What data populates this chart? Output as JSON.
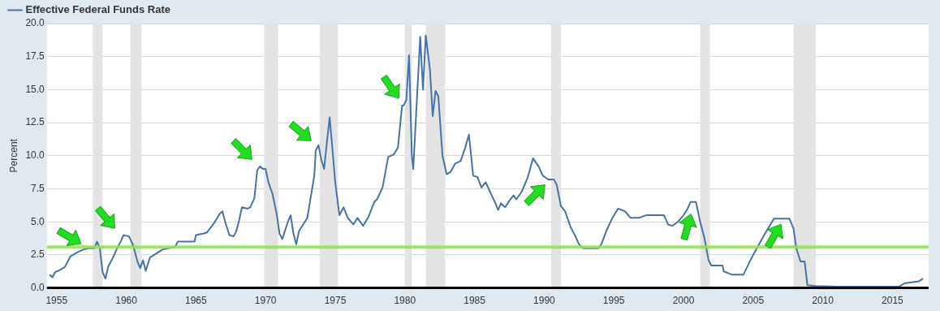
{
  "chart_data": {
    "type": "line",
    "ylabel": "Percent",
    "x": [
      1954.5,
      1954.7,
      1954.9,
      1955.3,
      1955.6,
      1956.0,
      1956.5,
      1956.9,
      1957.3,
      1957.7,
      1957.9,
      1958.1,
      1958.3,
      1958.5,
      1958.7,
      1959.0,
      1959.3,
      1959.6,
      1959.8,
      1960.2,
      1960.5,
      1960.8,
      1961.0,
      1961.2,
      1961.4,
      1961.7,
      1962.0,
      1962.3,
      1962.6,
      1963.0,
      1963.5,
      1963.7,
      1964.0,
      1964.5,
      1964.9,
      1965.0,
      1965.5,
      1965.8,
      1966.3,
      1966.7,
      1966.9,
      1967.1,
      1967.4,
      1967.7,
      1967.9,
      1968.1,
      1968.3,
      1968.7,
      1968.9,
      1969.2,
      1969.4,
      1969.6,
      1969.8,
      1970.0,
      1970.2,
      1970.5,
      1970.8,
      1971.0,
      1971.2,
      1971.6,
      1971.8,
      1972.0,
      1972.2,
      1972.4,
      1972.7,
      1973.0,
      1973.2,
      1973.5,
      1973.6,
      1973.8,
      1974.0,
      1974.2,
      1974.4,
      1974.6,
      1974.8,
      1975.0,
      1975.3,
      1975.6,
      1975.9,
      1976.3,
      1976.6,
      1977.0,
      1977.4,
      1977.8,
      1978.0,
      1978.4,
      1978.8,
      1979.2,
      1979.5,
      1979.8,
      1979.9,
      1980.1,
      1980.3,
      1980.5,
      1980.6,
      1980.9,
      1981.1,
      1981.3,
      1981.5,
      1981.8,
      1982.0,
      1982.2,
      1982.4,
      1982.7,
      1983.0,
      1983.3,
      1983.6,
      1984.0,
      1984.3,
      1984.6,
      1984.9,
      1985.2,
      1985.5,
      1985.8,
      1986.1,
      1986.5,
      1986.7,
      1986.9,
      1987.2,
      1987.5,
      1987.8,
      1988.0,
      1988.4,
      1988.8,
      1989.2,
      1989.6,
      1989.9,
      1990.3,
      1990.7,
      1990.9,
      1991.2,
      1991.5,
      1991.9,
      1992.2,
      1992.5,
      1992.8,
      1993.5,
      1993.9,
      1994.1,
      1994.5,
      1994.9,
      1995.3,
      1995.8,
      1996.2,
      1996.8,
      1997.3,
      1997.8,
      1998.6,
      1998.9,
      1999.2,
      1999.6,
      2000.0,
      2000.3,
      2000.5,
      2000.9,
      2001.2,
      2001.5,
      2001.8,
      2002.0,
      2002.8,
      2002.9,
      2003.5,
      2004.3,
      2005.0,
      2005.9,
      2006.5,
      2007.6,
      2007.9,
      2008.1,
      2008.4,
      2008.7,
      2008.9,
      2009.5,
      2011.0,
      2015.5,
      2015.9,
      2016.9,
      2017.2
    ],
    "series": [
      {
        "name": "Effective Federal Funds Rate",
        "color": "#4572a7",
        "values": [
          1.0,
          0.8,
          1.2,
          1.4,
          1.6,
          2.4,
          2.7,
          2.9,
          3.0,
          3.0,
          3.5,
          3.0,
          1.2,
          0.7,
          1.6,
          2.2,
          2.9,
          3.5,
          4.0,
          3.9,
          3.2,
          2.0,
          1.5,
          2.1,
          1.3,
          2.3,
          2.5,
          2.7,
          2.9,
          3.0,
          3.1,
          3.5,
          3.5,
          3.5,
          3.5,
          4.0,
          4.1,
          4.2,
          4.9,
          5.6,
          5.8,
          5.0,
          4.0,
          3.9,
          4.3,
          5.1,
          6.1,
          6.0,
          6.1,
          6.8,
          8.9,
          9.2,
          9.0,
          9.0,
          8.0,
          7.1,
          5.6,
          4.1,
          3.7,
          5.0,
          5.5,
          4.1,
          3.3,
          4.3,
          4.8,
          5.3,
          6.6,
          8.5,
          10.4,
          10.8,
          9.7,
          9.0,
          11.0,
          12.9,
          10.5,
          8.0,
          5.5,
          6.1,
          5.3,
          4.8,
          5.3,
          4.7,
          5.4,
          6.5,
          6.7,
          7.6,
          9.9,
          10.1,
          10.6,
          13.8,
          13.8,
          14.2,
          17.6,
          10.0,
          9.0,
          15.0,
          19.0,
          15.0,
          19.1,
          16.5,
          13.0,
          14.9,
          14.5,
          10.0,
          8.6,
          8.8,
          9.4,
          9.6,
          10.5,
          11.6,
          8.5,
          8.4,
          7.6,
          8.0,
          7.3,
          6.4,
          5.9,
          6.4,
          6.1,
          6.6,
          7.0,
          6.7,
          7.3,
          8.3,
          9.8,
          9.2,
          8.5,
          8.2,
          8.2,
          7.8,
          6.2,
          5.8,
          4.6,
          4.0,
          3.3,
          3.0,
          3.0,
          3.0,
          3.3,
          4.4,
          5.3,
          6.0,
          5.8,
          5.3,
          5.3,
          5.5,
          5.5,
          5.5,
          4.8,
          4.7,
          5.0,
          5.5,
          6.0,
          6.5,
          6.5,
          5.0,
          3.8,
          2.1,
          1.7,
          1.7,
          1.25,
          1.0,
          1.0,
          2.5,
          4.2,
          5.25,
          5.25,
          4.5,
          3.0,
          2.0,
          2.0,
          0.2,
          0.15,
          0.1,
          0.12,
          0.36,
          0.5,
          0.7
        ]
      }
    ],
    "xlim": [
      1954.3,
      2017.6
    ],
    "xticks": [
      1955,
      1960,
      1965,
      1970,
      1975,
      1980,
      1985,
      1990,
      1995,
      2000,
      2005,
      2010,
      2015
    ],
    "ylim": [
      0,
      20
    ],
    "yticks": [
      {
        "value": 0,
        "label": "0.0"
      },
      {
        "value": 2.5,
        "label": "2.5"
      },
      {
        "value": 5,
        "label": "5.0"
      },
      {
        "value": 7.5,
        "label": "7.5"
      },
      {
        "value": 10,
        "label": "10.0"
      },
      {
        "value": 12.5,
        "label": "12.5"
      },
      {
        "value": 15,
        "label": "15.0"
      },
      {
        "value": 17.5,
        "label": "17.5"
      },
      {
        "value": 20,
        "label": "20.0"
      }
    ],
    "grid": "y",
    "legend": "top left",
    "marker": "none",
    "line_style": "solid",
    "ref_lines": [
      {
        "axis": "y",
        "value": 3.1,
        "color": "#8fe04a"
      }
    ],
    "bands": [
      {
        "axis": "x",
        "from": 1957.6,
        "to": 1958.3,
        "color": "#e3e3e3"
      },
      {
        "axis": "x",
        "from": 1960.3,
        "to": 1961.1,
        "color": "#e3e3e3"
      },
      {
        "axis": "x",
        "from": 1969.9,
        "to": 1970.9,
        "color": "#e3e3e3"
      },
      {
        "axis": "x",
        "from": 1973.9,
        "to": 1975.2,
        "color": "#e3e3e3"
      },
      {
        "axis": "x",
        "from": 1980.0,
        "to": 1980.5,
        "color": "#e3e3e3"
      },
      {
        "axis": "x",
        "from": 1981.5,
        "to": 1982.9,
        "color": "#e3e3e3"
      },
      {
        "axis": "x",
        "from": 1990.5,
        "to": 1991.2,
        "color": "#e3e3e3"
      },
      {
        "axis": "x",
        "from": 2001.2,
        "to": 2001.9,
        "color": "#e3e3e3"
      },
      {
        "axis": "x",
        "from": 2007.9,
        "to": 2009.5,
        "color": "#e3e3e3"
      }
    ]
  }
}
